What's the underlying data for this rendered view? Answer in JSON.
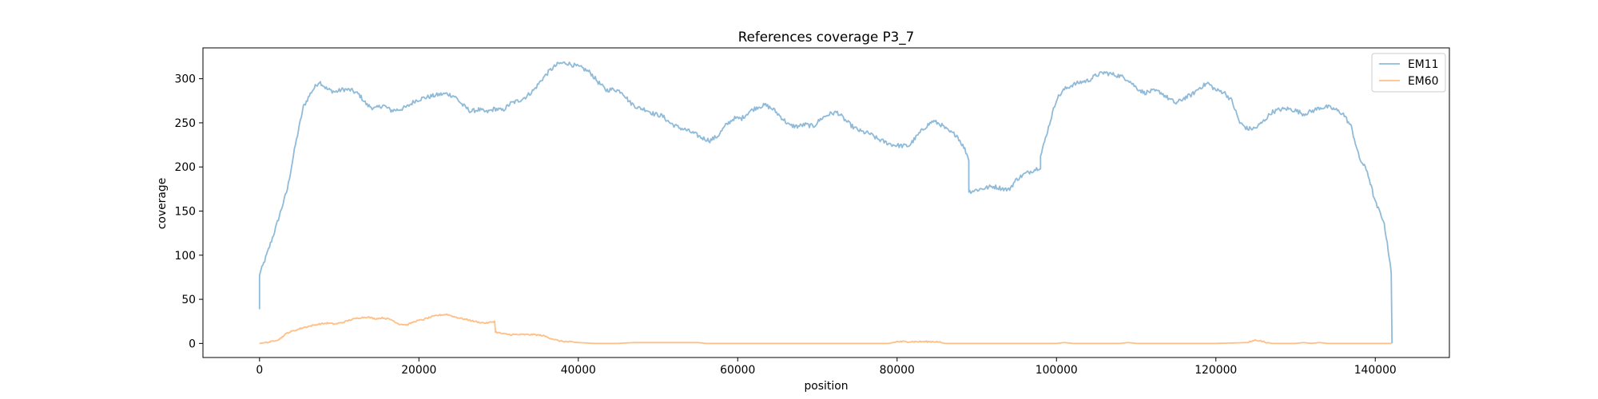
{
  "chart_data": {
    "type": "line",
    "title": "References coverage P3_7",
    "xlabel": "position",
    "ylabel": "coverage",
    "xlim": [
      -7100,
      149300
    ],
    "ylim": [
      -15.95,
      334.95
    ],
    "xticks": [
      0,
      20000,
      40000,
      60000,
      80000,
      100000,
      120000,
      140000
    ],
    "xtick_labels": [
      "0",
      "20000",
      "40000",
      "60000",
      "80000",
      "100000",
      "120000",
      "140000"
    ],
    "yticks": [
      0,
      50,
      100,
      150,
      200,
      250,
      300
    ],
    "ytick_labels": [
      "0",
      "50",
      "100",
      "150",
      "200",
      "250",
      "300"
    ],
    "grid": false,
    "legend_position": "top-right",
    "series": [
      {
        "name": "EM11",
        "color": "#1f77b4",
        "alpha": 0.5,
        "points": [
          [
            0,
            38
          ],
          [
            1,
            78
          ],
          [
            300,
            85
          ],
          [
            1000,
            103
          ],
          [
            2000,
            130
          ],
          [
            2500,
            145
          ],
          [
            3500,
            175
          ],
          [
            4500,
            225
          ],
          [
            5500,
            268
          ],
          [
            6500,
            285
          ],
          [
            7500,
            297
          ],
          [
            8500,
            288
          ],
          [
            9500,
            285
          ],
          [
            10500,
            288
          ],
          [
            11500,
            287
          ],
          [
            12500,
            282
          ],
          [
            13500,
            270
          ],
          [
            14500,
            266
          ],
          [
            15500,
            270
          ],
          [
            16500,
            264
          ],
          [
            17500,
            265
          ],
          [
            18500,
            268
          ],
          [
            19500,
            275
          ],
          [
            20500,
            278
          ],
          [
            21500,
            280
          ],
          [
            22500,
            282
          ],
          [
            23500,
            283
          ],
          [
            24500,
            280
          ],
          [
            25500,
            270
          ],
          [
            26500,
            263
          ],
          [
            27500,
            265
          ],
          [
            28500,
            262
          ],
          [
            29500,
            266
          ],
          [
            30500,
            264
          ],
          [
            31500,
            272
          ],
          [
            32500,
            275
          ],
          [
            33500,
            280
          ],
          [
            34500,
            288
          ],
          [
            35500,
            300
          ],
          [
            36500,
            310
          ],
          [
            37500,
            317
          ],
          [
            38500,
            318
          ],
          [
            39500,
            315
          ],
          [
            40500,
            312
          ],
          [
            41500,
            307
          ],
          [
            42500,
            296
          ],
          [
            43500,
            287
          ],
          [
            44500,
            288
          ],
          [
            45500,
            285
          ],
          [
            46500,
            273
          ],
          [
            47500,
            267
          ],
          [
            48500,
            265
          ],
          [
            49500,
            260
          ],
          [
            50500,
            258
          ],
          [
            51500,
            250
          ],
          [
            52500,
            245
          ],
          [
            53500,
            242
          ],
          [
            54500,
            238
          ],
          [
            55500,
            233
          ],
          [
            56500,
            230
          ],
          [
            57500,
            235
          ],
          [
            58500,
            247
          ],
          [
            59500,
            255
          ],
          [
            60500,
            255
          ],
          [
            61500,
            263
          ],
          [
            62500,
            268
          ],
          [
            63500,
            270
          ],
          [
            64500,
            265
          ],
          [
            65500,
            256
          ],
          [
            66500,
            247
          ],
          [
            67500,
            246
          ],
          [
            68500,
            248
          ],
          [
            69500,
            246
          ],
          [
            70500,
            255
          ],
          [
            71500,
            260
          ],
          [
            72500,
            262
          ],
          [
            73500,
            253
          ],
          [
            74500,
            245
          ],
          [
            75500,
            240
          ],
          [
            76500,
            238
          ],
          [
            77500,
            232
          ],
          [
            78500,
            228
          ],
          [
            79500,
            225
          ],
          [
            80500,
            224
          ],
          [
            81500,
            224
          ],
          [
            82500,
            235
          ],
          [
            83500,
            245
          ],
          [
            84500,
            252
          ],
          [
            85500,
            248
          ],
          [
            86500,
            240
          ],
          [
            87500,
            236
          ],
          [
            88500,
            220
          ],
          [
            89000,
            209
          ],
          [
            89001,
            172
          ],
          [
            90000,
            174
          ],
          [
            91000,
            176
          ],
          [
            92000,
            178
          ],
          [
            93000,
            176
          ],
          [
            94000,
            174
          ],
          [
            95000,
            186
          ],
          [
            96000,
            192
          ],
          [
            97000,
            196
          ],
          [
            98000,
            200
          ],
          [
            98001,
            212
          ],
          [
            99000,
            245
          ],
          [
            100000,
            277
          ],
          [
            101000,
            288
          ],
          [
            102000,
            293
          ],
          [
            103000,
            296
          ],
          [
            104000,
            298
          ],
          [
            105000,
            304
          ],
          [
            106000,
            307
          ],
          [
            107000,
            305
          ],
          [
            108000,
            303
          ],
          [
            109000,
            299
          ],
          [
            110000,
            290
          ],
          [
            111000,
            284
          ],
          [
            112000,
            286
          ],
          [
            113000,
            285
          ],
          [
            114000,
            278
          ],
          [
            115000,
            272
          ],
          [
            116000,
            278
          ],
          [
            117000,
            282
          ],
          [
            118000,
            290
          ],
          [
            119000,
            295
          ],
          [
            120000,
            287
          ],
          [
            121000,
            285
          ],
          [
            122000,
            275
          ],
          [
            123000,
            250
          ],
          [
            124000,
            243
          ],
          [
            125000,
            244
          ],
          [
            126000,
            252
          ],
          [
            127000,
            262
          ],
          [
            128000,
            265
          ],
          [
            129000,
            266
          ],
          [
            130000,
            264
          ],
          [
            131000,
            260
          ],
          [
            132000,
            263
          ],
          [
            133000,
            267
          ],
          [
            134000,
            268
          ],
          [
            135000,
            265
          ],
          [
            136000,
            260
          ],
          [
            137000,
            245
          ],
          [
            138000,
            210
          ],
          [
            139000,
            195
          ],
          [
            140000,
            160
          ],
          [
            140500,
            150
          ],
          [
            141000,
            140
          ],
          [
            141500,
            115
          ],
          [
            142000,
            80
          ],
          [
            142100,
            0
          ]
        ]
      },
      {
        "name": "EM60",
        "color": "#ff7f0e",
        "alpha": 0.5,
        "points": [
          [
            0,
            0
          ],
          [
            1500,
            2
          ],
          [
            2500,
            5
          ],
          [
            3500,
            12
          ],
          [
            4500,
            15
          ],
          [
            5500,
            18
          ],
          [
            6500,
            20
          ],
          [
            7500,
            22
          ],
          [
            8500,
            23
          ],
          [
            9500,
            22
          ],
          [
            10500,
            24
          ],
          [
            11500,
            27
          ],
          [
            12500,
            29
          ],
          [
            13500,
            30
          ],
          [
            14500,
            28
          ],
          [
            15500,
            29
          ],
          [
            16500,
            27
          ],
          [
            17500,
            22
          ],
          [
            18500,
            21
          ],
          [
            19500,
            25
          ],
          [
            20500,
            27
          ],
          [
            21500,
            30
          ],
          [
            22500,
            32
          ],
          [
            23500,
            33
          ],
          [
            24500,
            30
          ],
          [
            25500,
            28
          ],
          [
            26500,
            26
          ],
          [
            27500,
            24
          ],
          [
            28500,
            23
          ],
          [
            29500,
            25
          ],
          [
            29600,
            13
          ],
          [
            30500,
            11
          ],
          [
            31500,
            10
          ],
          [
            32500,
            10
          ],
          [
            33500,
            10
          ],
          [
            34500,
            10
          ],
          [
            35500,
            9
          ],
          [
            36500,
            6
          ],
          [
            37500,
            3
          ],
          [
            38500,
            2
          ],
          [
            40000,
            1
          ],
          [
            42000,
            0
          ],
          [
            45000,
            0
          ],
          [
            47000,
            1
          ],
          [
            50000,
            1
          ],
          [
            55000,
            1
          ],
          [
            56000,
            0
          ],
          [
            60000,
            0
          ],
          [
            70000,
            0
          ],
          [
            79000,
            0
          ],
          [
            80000,
            2
          ],
          [
            85000,
            2
          ],
          [
            86000,
            0
          ],
          [
            90000,
            0
          ],
          [
            100000,
            0
          ],
          [
            101000,
            1
          ],
          [
            102000,
            0
          ],
          [
            108000,
            0
          ],
          [
            109000,
            1
          ],
          [
            110000,
            0
          ],
          [
            120000,
            0
          ],
          [
            124000,
            1
          ],
          [
            125000,
            4
          ],
          [
            126000,
            2
          ],
          [
            127000,
            0
          ],
          [
            130000,
            0
          ],
          [
            131000,
            1
          ],
          [
            132000,
            0
          ],
          [
            133000,
            1
          ],
          [
            134000,
            0
          ],
          [
            142000,
            0
          ]
        ]
      }
    ]
  }
}
